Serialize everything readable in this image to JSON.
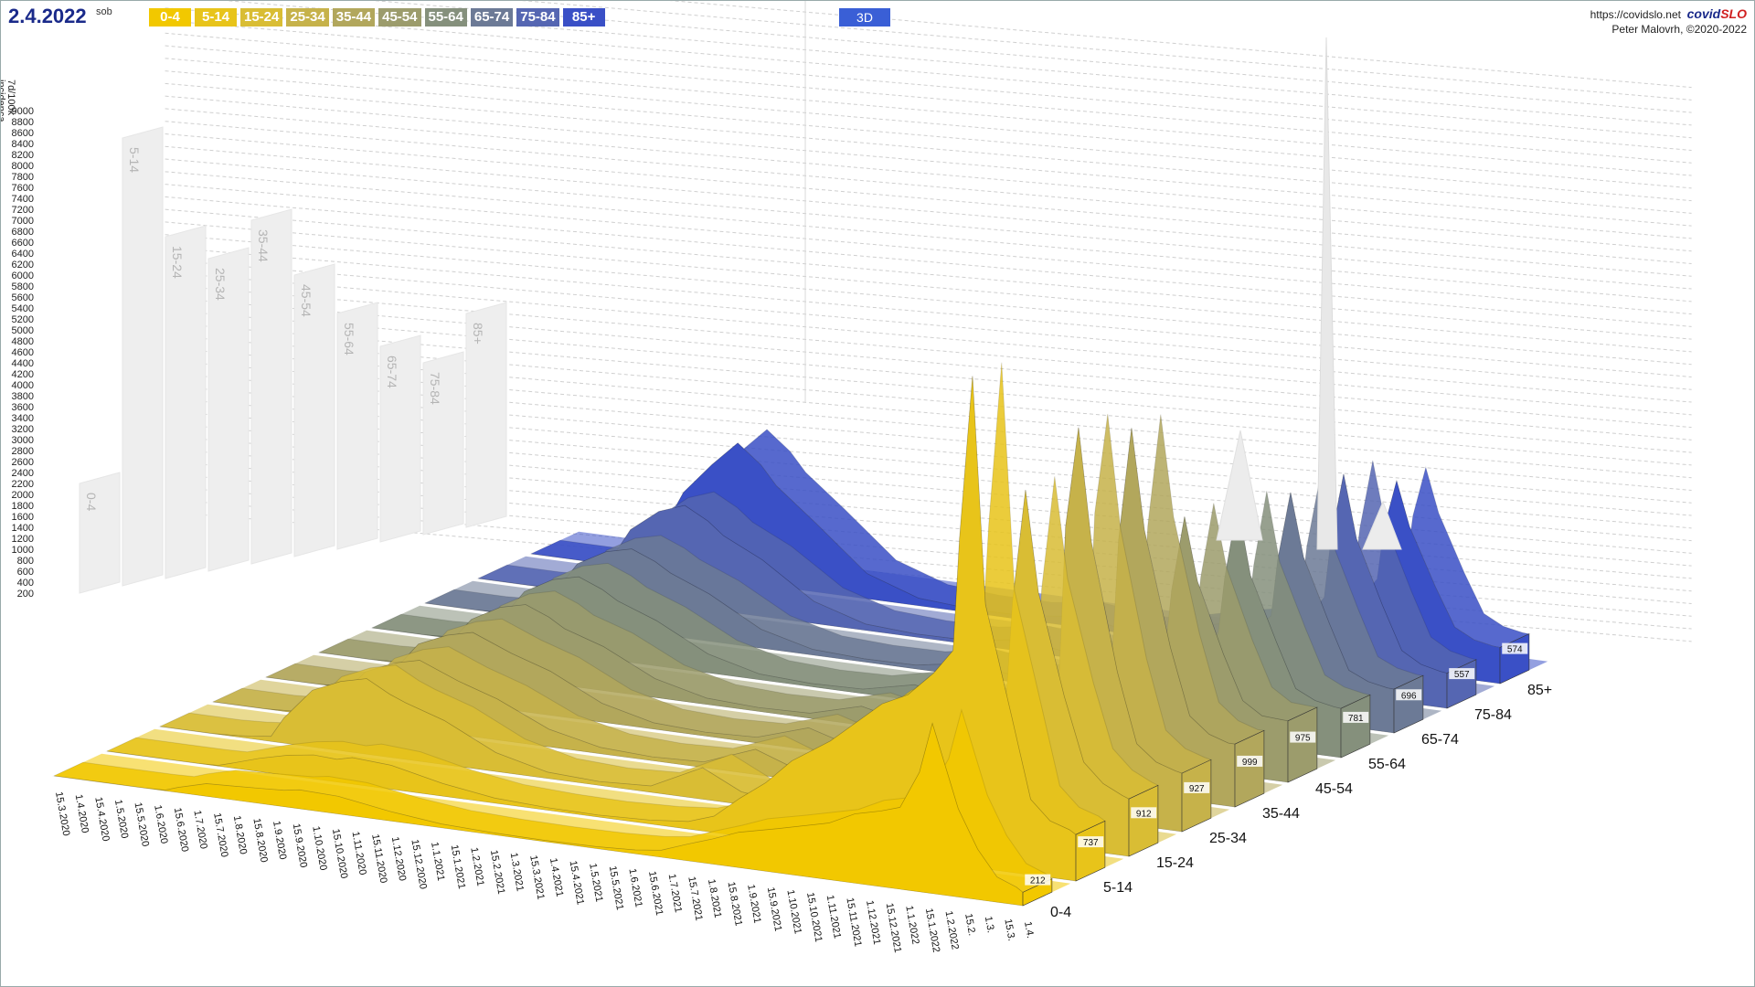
{
  "header": {
    "date": "2.4.2022",
    "day": "sob",
    "legend": [
      {
        "label": "0-4",
        "color": "#f2c800"
      },
      {
        "label": "5-14",
        "color": "#e8c41a"
      },
      {
        "label": "15-24",
        "color": "#d9bd34"
      },
      {
        "label": "25-34",
        "color": "#c6b24a"
      },
      {
        "label": "35-44",
        "color": "#b2a75c"
      },
      {
        "label": "45-54",
        "color": "#9c9c6c"
      },
      {
        "label": "55-64",
        "color": "#85907c"
      },
      {
        "label": "65-74",
        "color": "#6c7a96"
      },
      {
        "label": "75-84",
        "color": "#5566b2"
      },
      {
        "label": "85+",
        "color": "#3a50c6"
      }
    ],
    "mode_button": "3D",
    "url": "https://covidslo.net",
    "brand_a": "covid",
    "brand_b": "SLO",
    "author": "Peter Malovrh, ©2020-2022"
  },
  "chart_data": {
    "type": "area",
    "title": "",
    "ylabel": "7d/100k\nincidenca",
    "ylim": [
      0,
      9000
    ],
    "y_ticks": [
      200,
      400,
      600,
      800,
      1000,
      1200,
      1400,
      1600,
      1800,
      2000,
      2200,
      2400,
      2600,
      2800,
      3000,
      3200,
      3400,
      3600,
      3800,
      4000,
      4200,
      4400,
      4600,
      4800,
      5000,
      5200,
      5400,
      5600,
      5800,
      6000,
      6200,
      6400,
      6600,
      6800,
      7000,
      7200,
      7400,
      7600,
      7800,
      8000,
      8200,
      8400,
      8600,
      8800,
      9000
    ],
    "x_tick_labels": [
      "15.3.2020",
      "1.4.2020",
      "15.4.2020",
      "1.5.2020",
      "15.5.2020",
      "1.6.2020",
      "15.6.2020",
      "1.7.2020",
      "15.7.2020",
      "1.8.2020",
      "15.8.2020",
      "1.9.2020",
      "15.9.2020",
      "1.10.2020",
      "15.10.2020",
      "1.11.2020",
      "15.11.2020",
      "1.12.2020",
      "15.12.2020",
      "1.1.2021",
      "15.1.2021",
      "1.2.2021",
      "15.2.2021",
      "1.3.2021",
      "15.3.2021",
      "1.4.2021",
      "15.4.2021",
      "1.5.2021",
      "15.5.2021",
      "1.6.2021",
      "15.6.2021",
      "1.7.2021",
      "15.7.2021",
      "1.8.2021",
      "15.8.2021",
      "1.9.2021",
      "15.9.2021",
      "1.10.2021",
      "15.10.2021",
      "1.11.2021",
      "15.11.2021",
      "1.12.2021",
      "15.12.2021",
      "1.1.2022",
      "15.1.2022",
      "1.2.2022",
      "15.2.",
      "1.3.",
      "15.3.",
      "1.4."
    ],
    "depth_labels": [
      "0-4",
      "5-14",
      "15-24",
      "25-34",
      "35-44",
      "45-54",
      "55-64",
      "65-74",
      "75-84",
      "85+"
    ],
    "current_values": [
      212,
      737,
      912,
      927,
      999,
      975,
      781,
      696,
      557,
      574
    ],
    "max_values": [
      2200,
      8500,
      6700,
      6300,
      7000,
      6000,
      5300,
      4700,
      4400,
      5300
    ],
    "peak_values": [
      2700,
      7800,
      5600,
      6200,
      5800,
      4000,
      3800,
      3600,
      3500,
      3000
    ],
    "series": [
      {
        "name": "0-4",
        "x": [
          0,
          40,
          60,
          70,
          86,
          96,
          118,
          140,
          160,
          178,
          190,
          220,
          260,
          300,
          340,
          380,
          420,
          450,
          470,
          490,
          510,
          530,
          560,
          600,
          620,
          640,
          655,
          660,
          670,
          680,
          700,
          715,
          730,
          745,
          750
        ],
        "y": [
          0,
          0,
          0,
          0,
          10,
          80,
          200,
          220,
          240,
          260,
          300,
          280,
          150,
          60,
          30,
          20,
          30,
          60,
          110,
          260,
          400,
          560,
          700,
          900,
          1100,
          1200,
          1300,
          1500,
          1900,
          2700,
          1400,
          800,
          400,
          280,
          212
        ]
      },
      {
        "name": "5-14",
        "x": [
          0,
          40,
          60,
          70,
          86,
          96,
          118,
          140,
          160,
          178,
          190,
          220,
          260,
          300,
          340,
          380,
          420,
          450,
          470,
          490,
          510,
          530,
          560,
          600,
          620,
          640,
          655,
          660,
          670,
          680,
          700,
          715,
          730,
          745,
          750
        ],
        "y": [
          0,
          0,
          0,
          0,
          10,
          70,
          210,
          320,
          380,
          360,
          420,
          380,
          200,
          80,
          40,
          30,
          60,
          120,
          260,
          600,
          900,
          1300,
          1700,
          2400,
          2600,
          3000,
          3400,
          5200,
          7800,
          4200,
          2500,
          1200,
          900,
          800,
          737
        ]
      },
      {
        "name": "15-24",
        "x": [
          0,
          40,
          60,
          70,
          86,
          96,
          118,
          140,
          160,
          178,
          190,
          220,
          260,
          300,
          340,
          380,
          420,
          450,
          470,
          490,
          510,
          530,
          560,
          600,
          620,
          640,
          655,
          660,
          670,
          680,
          700,
          715,
          730,
          745,
          750
        ],
        "y": [
          0,
          0,
          20,
          40,
          80,
          400,
          900,
          1100,
          1200,
          1000,
          900,
          700,
          300,
          100,
          60,
          100,
          500,
          200,
          150,
          300,
          500,
          700,
          900,
          1300,
          1500,
          1800,
          2200,
          3800,
          5600,
          4000,
          2400,
          1400,
          1100,
          950,
          912
        ]
      },
      {
        "name": "25-34",
        "x": [
          0,
          40,
          60,
          70,
          86,
          96,
          118,
          140,
          160,
          178,
          190,
          220,
          260,
          300,
          340,
          380,
          420,
          450,
          470,
          490,
          510,
          530,
          560,
          600,
          620,
          640,
          655,
          660,
          670,
          680,
          700,
          715,
          730,
          745,
          750
        ],
        "y": [
          0,
          0,
          20,
          40,
          80,
          300,
          800,
          1000,
          1100,
          950,
          850,
          650,
          280,
          100,
          60,
          90,
          400,
          180,
          140,
          280,
          450,
          650,
          850,
          1200,
          1400,
          1700,
          2200,
          4600,
          6200,
          4400,
          2400,
          1300,
          1050,
          950,
          927
        ]
      },
      {
        "name": "35-44",
        "x": [
          0,
          40,
          60,
          70,
          86,
          96,
          118,
          140,
          160,
          178,
          190,
          220,
          260,
          300,
          340,
          380,
          420,
          450,
          470,
          490,
          510,
          530,
          560,
          600,
          620,
          640,
          655,
          660,
          670,
          680,
          700,
          715,
          730,
          745,
          750
        ],
        "y": [
          0,
          0,
          20,
          40,
          80,
          300,
          850,
          1050,
          1150,
          1000,
          900,
          700,
          300,
          100,
          60,
          90,
          350,
          170,
          140,
          280,
          450,
          650,
          850,
          1200,
          1400,
          1700,
          2100,
          4000,
          5800,
          4200,
          2400,
          1350,
          1100,
          1000,
          999
        ]
      },
      {
        "name": "45-54",
        "x": [
          0,
          40,
          60,
          70,
          86,
          96,
          118,
          140,
          160,
          178,
          190,
          220,
          260,
          300,
          340,
          380,
          420,
          450,
          470,
          490,
          510,
          530,
          560,
          600,
          620,
          640,
          655,
          660,
          670,
          680,
          700,
          715,
          730,
          745,
          750
        ],
        "y": [
          0,
          0,
          20,
          40,
          80,
          300,
          850,
          1100,
          1200,
          1050,
          900,
          700,
          300,
          100,
          60,
          80,
          300,
          160,
          130,
          250,
          400,
          550,
          700,
          1000,
          1200,
          1500,
          1800,
          2800,
          4000,
          3000,
          1900,
          1200,
          1000,
          980,
          975
        ]
      },
      {
        "name": "55-64",
        "x": [
          0,
          40,
          60,
          70,
          86,
          96,
          118,
          140,
          160,
          178,
          190,
          220,
          260,
          300,
          340,
          380,
          420,
          450,
          470,
          490,
          510,
          530,
          560,
          600,
          620,
          640,
          655,
          660,
          670,
          680,
          700,
          715,
          730,
          745,
          750
        ],
        "y": [
          0,
          0,
          20,
          40,
          80,
          300,
          900,
          1150,
          1250,
          1100,
          950,
          720,
          300,
          90,
          50,
          70,
          250,
          140,
          110,
          220,
          350,
          480,
          620,
          900,
          1100,
          1400,
          1700,
          2600,
          3800,
          2700,
          1700,
          1000,
          850,
          790,
          781
        ]
      },
      {
        "name": "65-74",
        "x": [
          0,
          40,
          60,
          70,
          86,
          96,
          118,
          140,
          160,
          178,
          190,
          220,
          260,
          300,
          340,
          380,
          420,
          450,
          470,
          490,
          510,
          530,
          560,
          600,
          620,
          640,
          655,
          660,
          670,
          680,
          700,
          715,
          730,
          745,
          750
        ],
        "y": [
          0,
          0,
          20,
          40,
          80,
          320,
          950,
          1200,
          1300,
          1150,
          1000,
          750,
          300,
          90,
          50,
          60,
          200,
          120,
          90,
          190,
          300,
          420,
          560,
          820,
          1000,
          1300,
          1600,
          2500,
          3600,
          2600,
          1600,
          900,
          760,
          700,
          696
        ]
      },
      {
        "name": "75-84",
        "x": [
          0,
          40,
          60,
          70,
          86,
          96,
          118,
          140,
          160,
          178,
          190,
          220,
          260,
          300,
          340,
          380,
          420,
          450,
          470,
          490,
          510,
          530,
          560,
          600,
          620,
          640,
          655,
          660,
          670,
          680,
          700,
          715,
          730,
          745,
          750
        ],
        "y": [
          0,
          0,
          20,
          40,
          80,
          350,
          1100,
          1450,
          1600,
          1400,
          1200,
          900,
          350,
          100,
          50,
          60,
          180,
          100,
          80,
          160,
          260,
          360,
          480,
          700,
          850,
          1100,
          1500,
          2400,
          3500,
          2500,
          1500,
          820,
          640,
          570,
          557
        ]
      },
      {
        "name": "85+",
        "x": [
          0,
          40,
          60,
          70,
          86,
          96,
          118,
          140,
          160,
          178,
          190,
          220,
          260,
          300,
          340,
          380,
          420,
          450,
          470,
          490,
          510,
          530,
          560,
          600,
          620,
          640,
          655,
          660,
          670,
          680,
          700,
          715,
          730,
          745,
          750
        ],
        "y": [
          0,
          0,
          40,
          60,
          120,
          420,
          1300,
          1800,
          2200,
          1900,
          1600,
          1100,
          400,
          120,
          60,
          60,
          160,
          90,
          70,
          140,
          240,
          340,
          460,
          700,
          800,
          1000,
          1400,
          2200,
          3000,
          2300,
          1400,
          800,
          640,
          580,
          574
        ]
      }
    ],
    "grid": true
  }
}
